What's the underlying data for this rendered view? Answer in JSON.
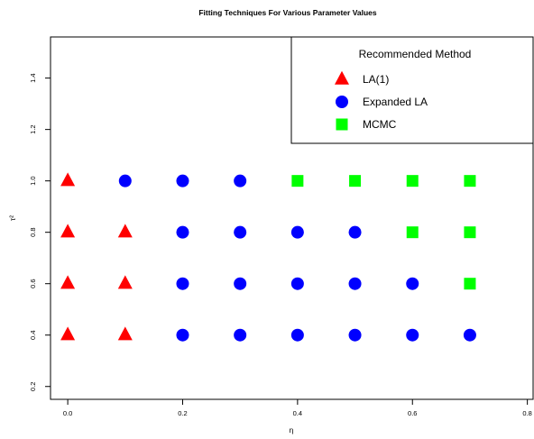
{
  "chart_data": {
    "type": "scatter",
    "title": "Fitting Techniques For Various Parameter Values",
    "xlabel": "η",
    "ylabel": "τ²",
    "xlim": [
      -0.03,
      0.81
    ],
    "ylim": [
      0.15,
      1.56
    ],
    "x_ticks": [
      "0.0",
      "0.2",
      "0.4",
      "0.6",
      "0.8"
    ],
    "y_ticks": [
      "0.2",
      "0.4",
      "0.6",
      "0.8",
      "1.0",
      "1.2",
      "1.4"
    ],
    "legend": {
      "title": "Recommended Method",
      "position": "top-right"
    },
    "series": [
      {
        "name": "LA(1)",
        "marker": "triangle",
        "color": "#ff0000",
        "points": [
          [
            0.0,
            1.0
          ],
          [
            0.0,
            0.8
          ],
          [
            0.0,
            0.6
          ],
          [
            0.0,
            0.4
          ],
          [
            0.1,
            0.8
          ],
          [
            0.1,
            0.6
          ],
          [
            0.1,
            0.4
          ]
        ]
      },
      {
        "name": "Expanded LA",
        "marker": "circle",
        "color": "#0000ff",
        "points": [
          [
            0.1,
            1.0
          ],
          [
            0.2,
            1.0
          ],
          [
            0.2,
            0.8
          ],
          [
            0.2,
            0.6
          ],
          [
            0.2,
            0.4
          ],
          [
            0.3,
            1.0
          ],
          [
            0.3,
            0.8
          ],
          [
            0.3,
            0.6
          ],
          [
            0.3,
            0.4
          ],
          [
            0.4,
            0.8
          ],
          [
            0.4,
            0.6
          ],
          [
            0.4,
            0.4
          ],
          [
            0.5,
            0.8
          ],
          [
            0.5,
            0.6
          ],
          [
            0.5,
            0.4
          ],
          [
            0.6,
            0.6
          ],
          [
            0.6,
            0.4
          ],
          [
            0.7,
            0.4
          ]
        ]
      },
      {
        "name": "MCMC",
        "marker": "square",
        "color": "#00ff00",
        "points": [
          [
            0.4,
            1.0
          ],
          [
            0.5,
            1.0
          ],
          [
            0.6,
            1.0
          ],
          [
            0.6,
            0.8
          ],
          [
            0.7,
            1.0
          ],
          [
            0.7,
            0.8
          ],
          [
            0.7,
            0.6
          ]
        ]
      }
    ]
  }
}
